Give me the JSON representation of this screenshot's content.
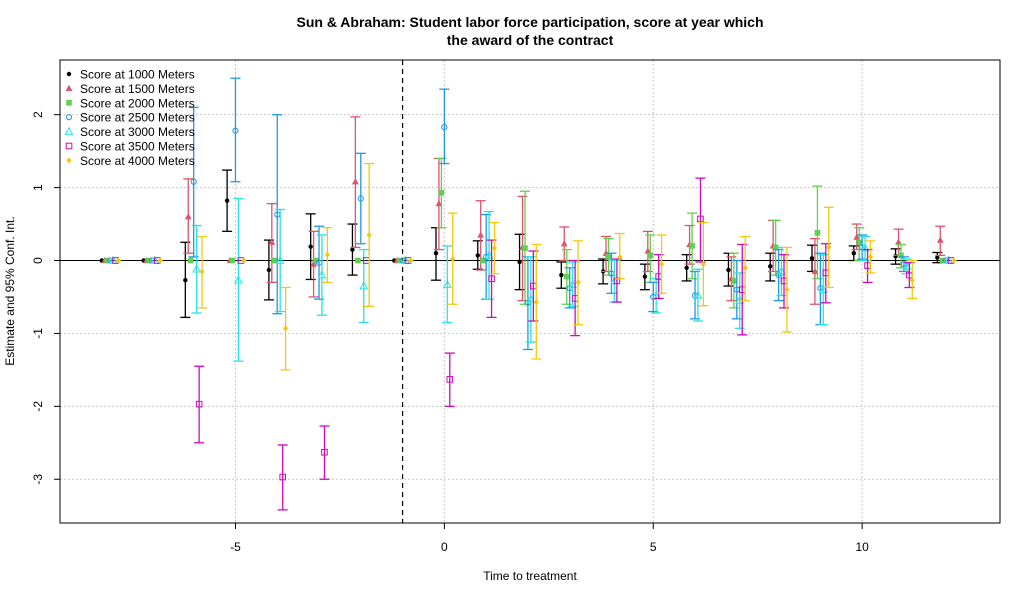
{
  "chart_data": {
    "type": "scatter",
    "title_lines": [
      "Sun & Abraham: Student labor force participation, score at year which",
      "the award of the contract"
    ],
    "xlabel": "Time to treatment",
    "ylabel": "Estimate and 95% Conf. Int.",
    "xlim": [
      -9.2,
      13.3
    ],
    "ylim": [
      -3.6,
      2.75
    ],
    "x_ticks": [
      -5,
      0,
      5,
      10
    ],
    "y_ticks": [
      -3,
      -2,
      -1,
      0,
      1,
      2
    ],
    "grid": true,
    "reference_line_y": 0,
    "treatment_line_x": -1,
    "legend_position": "top-left",
    "series": [
      {
        "name": "Score at 1000 Meters",
        "color": "#000000",
        "marker": "dot",
        "offset": -0.2,
        "points": [
          [
            -8,
            0,
            0,
            0
          ],
          [
            -7,
            0,
            0,
            0
          ],
          [
            -6,
            -0.27,
            -0.78,
            0.25
          ],
          [
            -5,
            0.82,
            0.4,
            1.24
          ],
          [
            -4,
            -0.13,
            -0.54,
            0.28
          ],
          [
            -3,
            0.19,
            -0.26,
            0.64
          ],
          [
            -2,
            0.15,
            -0.2,
            0.5
          ],
          [
            -1,
            0,
            0,
            0
          ],
          [
            0,
            0.1,
            -0.27,
            0.45
          ],
          [
            1,
            0.07,
            -0.12,
            0.27
          ],
          [
            2,
            -0.02,
            -0.4,
            0.36
          ],
          [
            3,
            -0.2,
            -0.38,
            -0.02
          ],
          [
            4,
            -0.15,
            -0.32,
            0.02
          ],
          [
            5,
            -0.22,
            -0.4,
            -0.05
          ],
          [
            6,
            -0.1,
            -0.28,
            0.08
          ],
          [
            7,
            -0.13,
            -0.35,
            0.1
          ],
          [
            8,
            -0.08,
            -0.28,
            0.1
          ],
          [
            9,
            0.03,
            -0.15,
            0.21
          ],
          [
            10,
            0.1,
            0,
            0.2
          ],
          [
            11,
            0.06,
            -0.05,
            0.16
          ],
          [
            12,
            0.04,
            -0.03,
            0.11
          ]
        ]
      },
      {
        "name": "Score at 1500 Meters",
        "color": "#df536b",
        "marker": "triangle",
        "offset": -0.13,
        "points": [
          [
            -8,
            0,
            0,
            0
          ],
          [
            -7,
            0,
            0,
            0
          ],
          [
            -6,
            0.6,
            0.1,
            1.12
          ],
          [
            -5,
            0,
            0,
            0
          ],
          [
            -4,
            0.25,
            -0.3,
            0.78
          ],
          [
            -3,
            -0.05,
            -0.5,
            0.4
          ],
          [
            -2,
            1.08,
            0.18,
            1.97
          ],
          [
            -1,
            0,
            0,
            0
          ],
          [
            0,
            0.78,
            0.15,
            1.4
          ],
          [
            1,
            0.35,
            -0.13,
            0.82
          ],
          [
            2,
            0.18,
            -0.55,
            0.88
          ],
          [
            3,
            0.23,
            0,
            0.46
          ],
          [
            4,
            0.1,
            -0.15,
            0.33
          ],
          [
            5,
            0.13,
            -0.15,
            0.4
          ],
          [
            6,
            0.22,
            -0.05,
            0.48
          ],
          [
            7,
            -0.25,
            -0.55,
            0.05
          ],
          [
            8,
            0.2,
            -0.15,
            0.55
          ],
          [
            9,
            -0.15,
            -0.6,
            0.3
          ],
          [
            10,
            0.32,
            0.15,
            0.5
          ],
          [
            11,
            0.25,
            0.07,
            0.43
          ],
          [
            12,
            0.28,
            0.07,
            0.47
          ]
        ]
      },
      {
        "name": "Score at 2000 Meters",
        "color": "#61d04f",
        "marker": "square",
        "offset": -0.07,
        "points": [
          [
            -8,
            0,
            0,
            0
          ],
          [
            -7,
            0,
            0,
            0
          ],
          [
            -6,
            0,
            0,
            0
          ],
          [
            -5,
            0,
            0,
            0
          ],
          [
            -4,
            0,
            0,
            0
          ],
          [
            -3,
            0,
            0,
            0
          ],
          [
            -2,
            0,
            0,
            0
          ],
          [
            -1,
            0,
            0,
            0
          ],
          [
            0,
            0.93,
            0.45,
            1.4
          ],
          [
            1,
            0,
            0,
            0
          ],
          [
            2,
            0.17,
            -0.6,
            0.95
          ],
          [
            3,
            -0.22,
            -0.6,
            0.15
          ],
          [
            4,
            0.05,
            -0.2,
            0.3
          ],
          [
            5,
            0.07,
            -0.3,
            0.35
          ],
          [
            6,
            0.2,
            -0.25,
            0.65
          ],
          [
            7,
            -0.28,
            -0.65,
            0.1
          ],
          [
            8,
            0.18,
            -0.2,
            0.55
          ],
          [
            9,
            0.38,
            -0.25,
            1.02
          ],
          [
            10,
            0.25,
            0,
            0.45
          ],
          [
            11,
            0.07,
            -0.1,
            0.22
          ],
          [
            12,
            0,
            0,
            0
          ]
        ]
      },
      {
        "name": "Score at 2500 Meters",
        "color": "#2297e6",
        "marker": "circle",
        "offset": 0,
        "points": [
          [
            -8,
            0,
            0,
            0
          ],
          [
            -7,
            0,
            0,
            0
          ],
          [
            -6,
            1.08,
            0.05,
            2.1
          ],
          [
            -5,
            1.78,
            1.08,
            2.5
          ],
          [
            -4,
            0.63,
            -0.73,
            2.0
          ],
          [
            -3,
            -0.03,
            -0.53,
            0.47
          ],
          [
            -2,
            0.85,
            0.23,
            1.47
          ],
          [
            -1,
            0,
            0,
            0
          ],
          [
            0,
            1.83,
            1.33,
            2.35
          ],
          [
            1,
            0.05,
            -0.53,
            0.63
          ],
          [
            2,
            -0.58,
            -1.22,
            0.05
          ],
          [
            3,
            -0.38,
            -0.65,
            -0.1
          ],
          [
            4,
            -0.18,
            -0.45,
            0.1
          ],
          [
            5,
            -0.5,
            -0.7,
            -0.3
          ],
          [
            6,
            -0.48,
            -0.8,
            -0.15
          ],
          [
            7,
            -0.4,
            -0.8,
            0
          ],
          [
            8,
            -0.2,
            -0.55,
            0.15
          ],
          [
            9,
            -0.38,
            -0.88,
            0.1
          ],
          [
            10,
            0.18,
            0.02,
            0.35
          ],
          [
            11,
            -0.05,
            -0.15,
            0.05
          ],
          [
            12,
            0,
            0,
            0
          ]
        ]
      },
      {
        "name": "Score at 3000 Meters",
        "color": "#28e2e5",
        "marker": "triangle-open",
        "offset": 0.07,
        "points": [
          [
            -8,
            0,
            0,
            0
          ],
          [
            -7,
            0,
            0,
            0
          ],
          [
            -6,
            -0.12,
            -0.72,
            0.48
          ],
          [
            -5,
            -0.27,
            -1.38,
            0.85
          ],
          [
            -4,
            0,
            -0.7,
            0.7
          ],
          [
            -3,
            -0.2,
            -0.75,
            0.35
          ],
          [
            -2,
            -0.35,
            -0.85,
            0.15
          ],
          [
            -1,
            0,
            0,
            0
          ],
          [
            0,
            -0.33,
            -0.85,
            0.2
          ],
          [
            1,
            0.07,
            -0.53,
            0.67
          ],
          [
            2,
            -0.53,
            -1.12,
            0.05
          ],
          [
            3,
            -0.33,
            -0.63,
            -0.02
          ],
          [
            4,
            -0.28,
            -0.57,
            0
          ],
          [
            5,
            -0.48,
            -0.72,
            -0.25
          ],
          [
            6,
            -0.48,
            -0.83,
            -0.12
          ],
          [
            7,
            -0.55,
            -0.93,
            -0.17
          ],
          [
            8,
            -0.15,
            -0.48,
            0.18
          ],
          [
            9,
            -0.4,
            -0.88,
            0.08
          ],
          [
            10,
            0.17,
            0,
            0.33
          ],
          [
            11,
            -0.08,
            -0.18,
            0.02
          ],
          [
            12,
            0,
            0,
            0
          ]
        ]
      },
      {
        "name": "Score at 3500 Meters",
        "color": "#cd0bbc",
        "marker": "square-open",
        "offset": 0.13,
        "points": [
          [
            -8,
            0,
            0,
            0
          ],
          [
            -7,
            0,
            0,
            0
          ],
          [
            -6,
            -1.97,
            -2.5,
            -1.45
          ],
          [
            -5,
            0,
            0,
            0
          ],
          [
            -4,
            -2.97,
            -3.42,
            -2.53
          ],
          [
            -3,
            -2.63,
            -3.0,
            -2.27
          ],
          [
            -2,
            0,
            0,
            0
          ],
          [
            -1,
            0,
            0,
            0
          ],
          [
            0,
            -1.63,
            -2.0,
            -1.27
          ],
          [
            1,
            -0.25,
            -0.78,
            0.28
          ],
          [
            2,
            -0.35,
            -0.83,
            0.13
          ],
          [
            3,
            -0.52,
            -1.03,
            0
          ],
          [
            4,
            -0.28,
            -0.57,
            0.02
          ],
          [
            5,
            -0.22,
            -0.52,
            0.08
          ],
          [
            6,
            0.57,
            -0.02,
            1.13
          ],
          [
            7,
            -0.4,
            -1.02,
            0.22
          ],
          [
            8,
            -0.28,
            -0.65,
            0.08
          ],
          [
            9,
            -0.17,
            -0.58,
            0.23
          ],
          [
            10,
            -0.07,
            -0.3,
            0.15
          ],
          [
            11,
            -0.2,
            -0.37,
            -0.03
          ],
          [
            12,
            0,
            0,
            0
          ]
        ]
      },
      {
        "name": "Score at 4000 Meters",
        "color": "#f5c710",
        "marker": "diamond",
        "offset": 0.2,
        "points": [
          [
            -8,
            0,
            0,
            0
          ],
          [
            -7,
            0,
            0,
            0
          ],
          [
            -6,
            -0.15,
            -0.65,
            0.33
          ],
          [
            -5,
            0,
            0,
            0
          ],
          [
            -4,
            -0.93,
            -1.5,
            -0.37
          ],
          [
            -3,
            0.08,
            -0.3,
            0.45
          ],
          [
            -2,
            0.35,
            -0.63,
            1.33
          ],
          [
            -1,
            0,
            0,
            0
          ],
          [
            0,
            0.02,
            -0.6,
            0.65
          ],
          [
            1,
            0.17,
            -0.18,
            0.52
          ],
          [
            2,
            -0.57,
            -1.35,
            0.22
          ],
          [
            3,
            -0.3,
            -0.88,
            0.27
          ],
          [
            4,
            0.05,
            -0.25,
            0.37
          ],
          [
            5,
            -0.05,
            -0.45,
            0.35
          ],
          [
            6,
            -0.05,
            -0.62,
            0.52
          ],
          [
            7,
            -0.1,
            -0.55,
            0.33
          ],
          [
            8,
            -0.4,
            -0.98,
            0.18
          ],
          [
            9,
            0.18,
            -0.37,
            0.73
          ],
          [
            10,
            0.05,
            -0.17,
            0.27
          ],
          [
            11,
            -0.27,
            -0.52,
            0
          ],
          [
            12,
            0,
            0,
            0
          ]
        ]
      }
    ]
  }
}
